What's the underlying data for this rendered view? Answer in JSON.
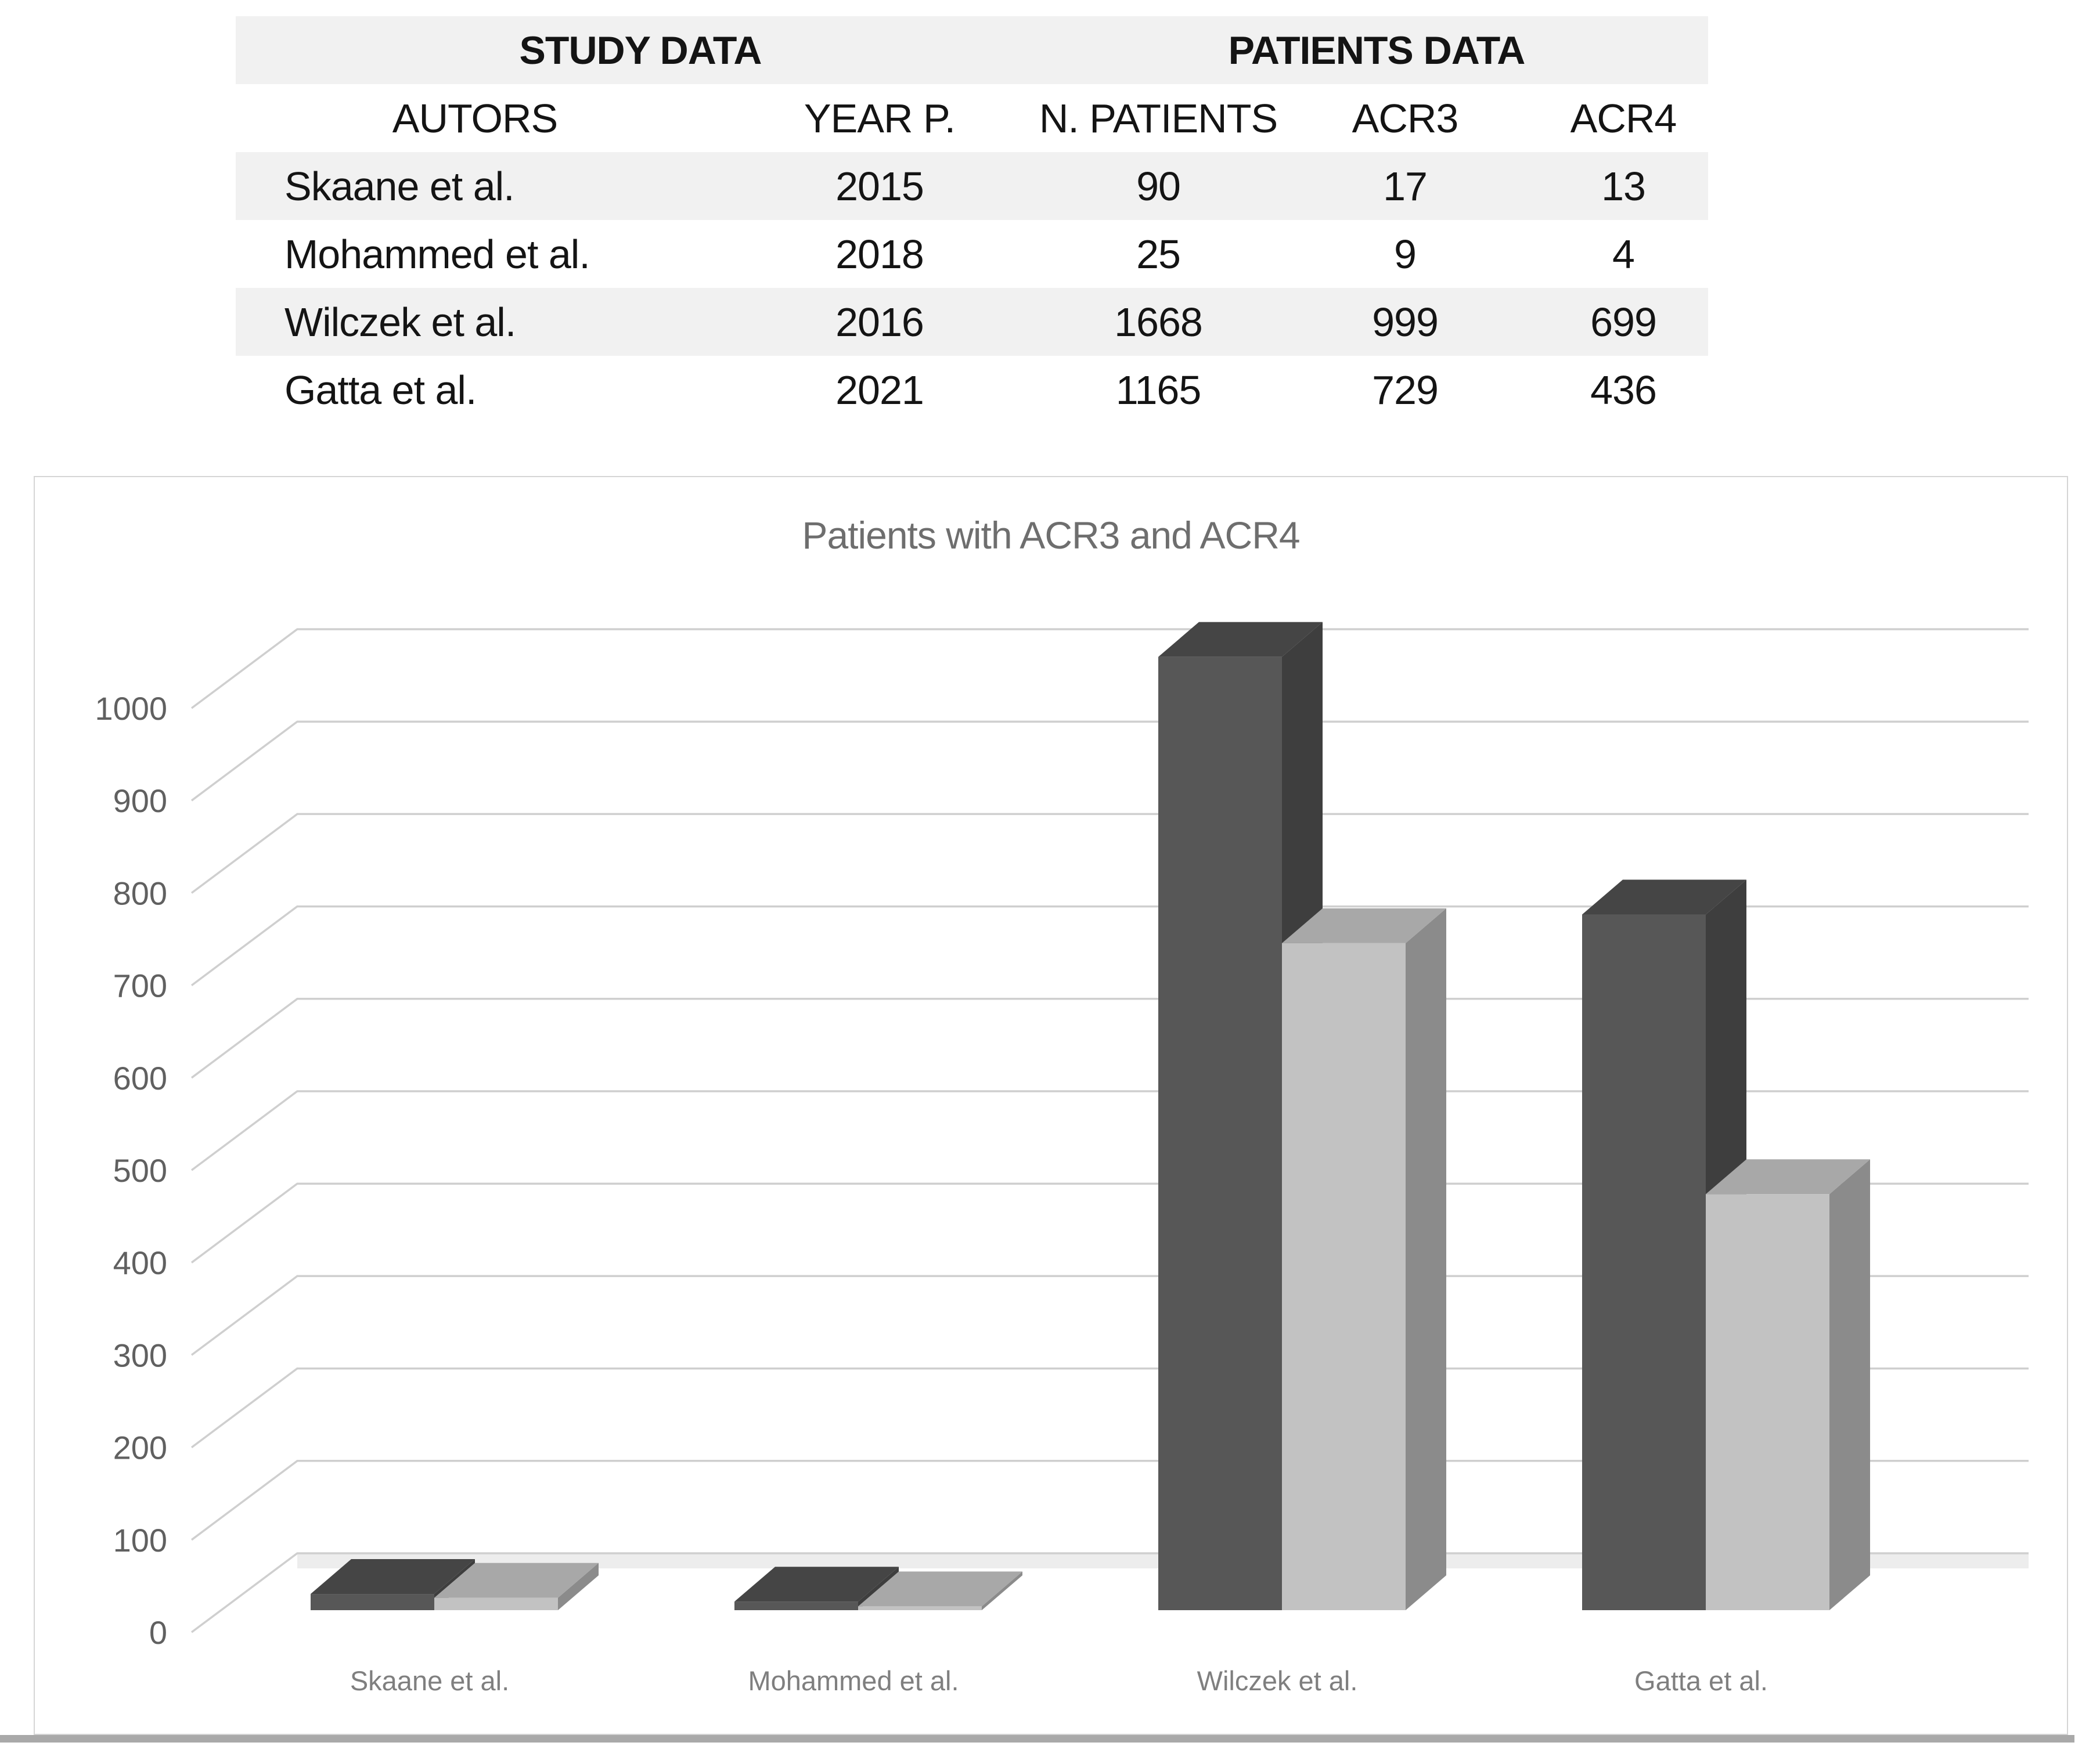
{
  "table": {
    "group_headers": [
      {
        "label": "STUDY DATA"
      },
      {
        "label": "PATIENTS DATA"
      }
    ],
    "columns": [
      "AUTORS",
      "YEAR P.",
      "N. PATIENTS",
      "ACR3",
      "ACR4"
    ],
    "rows": [
      [
        "Skaane et al.",
        "2015",
        "90",
        "17",
        "13"
      ],
      [
        "Mohammed et al.",
        "2018",
        "25",
        "9",
        "4"
      ],
      [
        "Wilczek et al.",
        "2016",
        "1668",
        "999",
        "699"
      ],
      [
        "Gatta et al.",
        "2021",
        "1165",
        "729",
        "436"
      ]
    ]
  },
  "chart_data": {
    "type": "bar",
    "subtype": "3d-clustered-column",
    "title": "Patients with ACR3 and ACR4",
    "categories": [
      "Skaane et al.",
      "Mohammed et al.",
      "Wilczek et al.",
      "Gatta et al."
    ],
    "series": [
      {
        "name": "ACR3",
        "values": [
          17,
          9,
          999,
          729
        ]
      },
      {
        "name": "ACR4",
        "values": [
          13,
          4,
          699,
          436
        ]
      }
    ],
    "xlabel": "",
    "ylabel": "",
    "ylim": [
      0,
      1000
    ],
    "ytick_step": 100,
    "grid": true,
    "legend_position": "none"
  },
  "colors": {
    "table_stripe": "#f1f1f1",
    "table_text": "#141414",
    "chart_border": "#d5d5d5",
    "gridline": "#cfcfcf",
    "floor_band": "#ededed",
    "title_text": "#6e6e6e",
    "tick_text": "#606060",
    "category_text": "#7f7f7f",
    "acr3_front": "#575757",
    "acr3_side": "#3e3e3e",
    "acr3_top": "#454545",
    "acr4_front": "#c2c2c2",
    "acr4_side": "#8b8b8b",
    "acr4_top": "#a8a8a8",
    "bottom_rule": "#a9a9a9"
  }
}
